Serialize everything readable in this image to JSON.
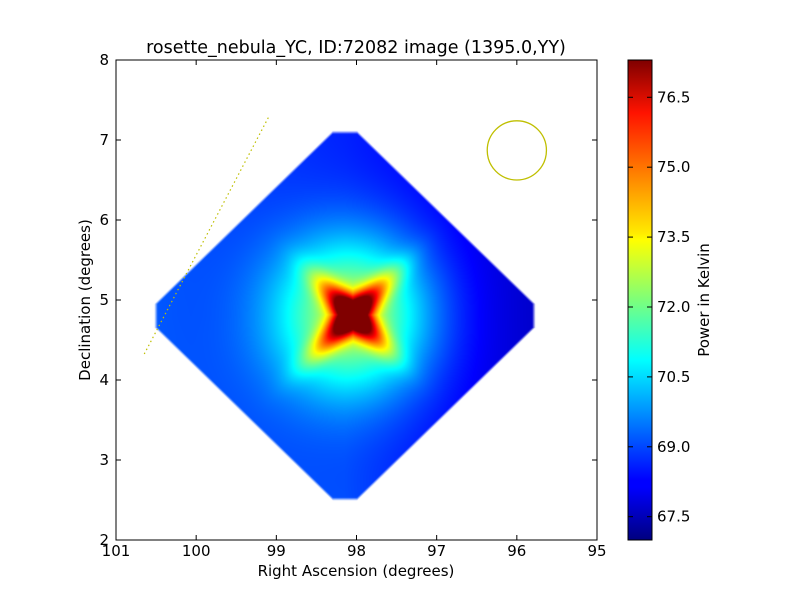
{
  "chart_data": {
    "type": "heatmap",
    "title": "rosette_nebula_YC, ID:72082 image (1395.0,YY)",
    "xlabel": "Right Ascension (degrees)",
    "ylabel": "Declination (degrees)",
    "xlim": [
      101,
      95
    ],
    "ylim": [
      2,
      8
    ],
    "xticks": [
      "101",
      "100",
      "99",
      "98",
      "97",
      "96",
      "95"
    ],
    "yticks": [
      "2",
      "3",
      "4",
      "5",
      "6",
      "7",
      "8"
    ],
    "grid": false,
    "colorbar": {
      "label": "Power in Kelvin",
      "range": [
        67.0,
        77.3
      ],
      "ticks": [
        "67.5",
        "69.0",
        "70.5",
        "72.0",
        "73.5",
        "75.0",
        "76.5"
      ],
      "colormap": "jet"
    },
    "map": {
      "center_ra": 98.05,
      "center_dec": 4.82,
      "corners": {
        "top": [
          98.0,
          7.27
        ],
        "bottom": [
          98.0,
          2.35
        ],
        "left": [
          100.68,
          4.8
        ],
        "right": [
          95.62,
          4.8
        ]
      },
      "background_level": 68.6,
      "peak_level": 77.3
    },
    "beam_circle": {
      "ra": 96.0,
      "dec": 6.87,
      "radius_deg": 0.37,
      "color": "#bfbf00"
    },
    "dotted_line": {
      "start": [
        99.1,
        7.28
      ],
      "end": [
        100.65,
        4.32
      ],
      "color": "#bfbf00"
    }
  }
}
